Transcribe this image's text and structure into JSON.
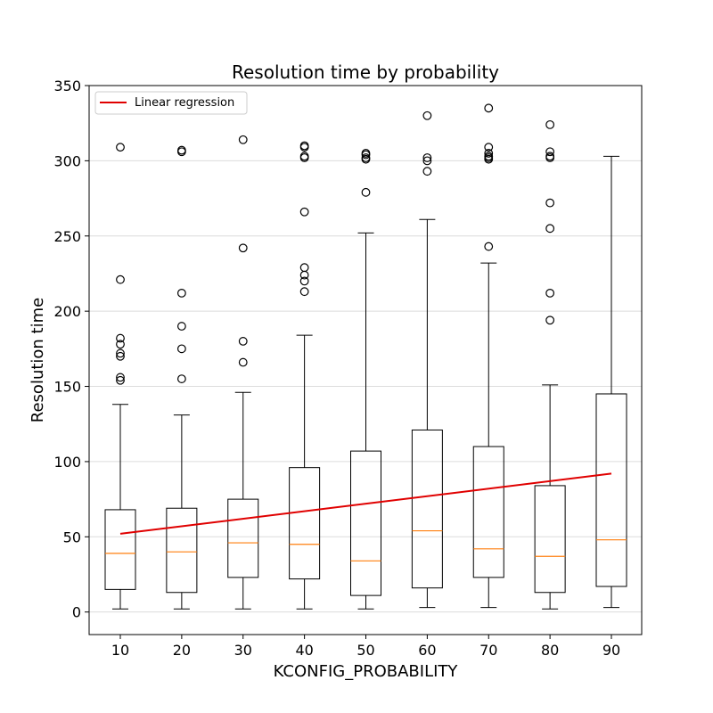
{
  "chart_data": {
    "type": "box",
    "title": "Resolution time by probability",
    "xlabel": "KCONFIG_PROBABILITY",
    "ylabel": "Resolution time",
    "ylim": [
      -15,
      350
    ],
    "yticks": [
      0,
      50,
      100,
      150,
      200,
      250,
      300,
      350
    ],
    "grid": "horizontal",
    "legend": {
      "placement": "top-left",
      "label": "Linear regression"
    },
    "colors": {
      "box": "#000000",
      "median": "#ff7f0e",
      "regression": "#e00000",
      "grid": "#dcdcdc"
    },
    "categories": [
      "10",
      "20",
      "30",
      "40",
      "50",
      "60",
      "70",
      "80",
      "90"
    ],
    "boxes": [
      {
        "x": "10",
        "whisker_low": 2,
        "q1": 15,
        "median": 39,
        "q3": 68,
        "whisker_high": 138,
        "outliers": [
          154,
          156,
          170,
          172,
          178,
          182,
          221,
          309
        ]
      },
      {
        "x": "20",
        "whisker_low": 2,
        "q1": 13,
        "median": 40,
        "q3": 69,
        "whisker_high": 131,
        "outliers": [
          155,
          175,
          190,
          212,
          306,
          307
        ]
      },
      {
        "x": "30",
        "whisker_low": 2,
        "q1": 23,
        "median": 46,
        "q3": 75,
        "whisker_high": 146,
        "outliers": [
          166,
          180,
          242,
          314
        ]
      },
      {
        "x": "40",
        "whisker_low": 2,
        "q1": 22,
        "median": 45,
        "q3": 96,
        "whisker_high": 184,
        "outliers": [
          213,
          220,
          224,
          229,
          266,
          302,
          303,
          309,
          310
        ]
      },
      {
        "x": "50",
        "whisker_low": 2,
        "q1": 11,
        "median": 34,
        "q3": 107,
        "whisker_high": 252,
        "outliers": [
          279,
          301,
          302,
          304,
          305
        ]
      },
      {
        "x": "60",
        "whisker_low": 3,
        "q1": 16,
        "median": 54,
        "q3": 121,
        "whisker_high": 261,
        "outliers": [
          293,
          300,
          302,
          330
        ]
      },
      {
        "x": "70",
        "whisker_low": 3,
        "q1": 23,
        "median": 42,
        "q3": 110,
        "whisker_high": 232,
        "outliers": [
          243,
          301,
          302,
          303,
          305,
          309,
          335
        ]
      },
      {
        "x": "80",
        "whisker_low": 2,
        "q1": 13,
        "median": 37,
        "q3": 84,
        "whisker_high": 151,
        "outliers": [
          194,
          212,
          255,
          272,
          302,
          303,
          306,
          324
        ]
      },
      {
        "x": "90",
        "whisker_low": 3,
        "q1": 17,
        "median": 48,
        "q3": 145,
        "whisker_high": 303,
        "outliers": []
      }
    ],
    "regression": {
      "x": [
        "10",
        "90"
      ],
      "y": [
        52,
        92
      ]
    }
  }
}
